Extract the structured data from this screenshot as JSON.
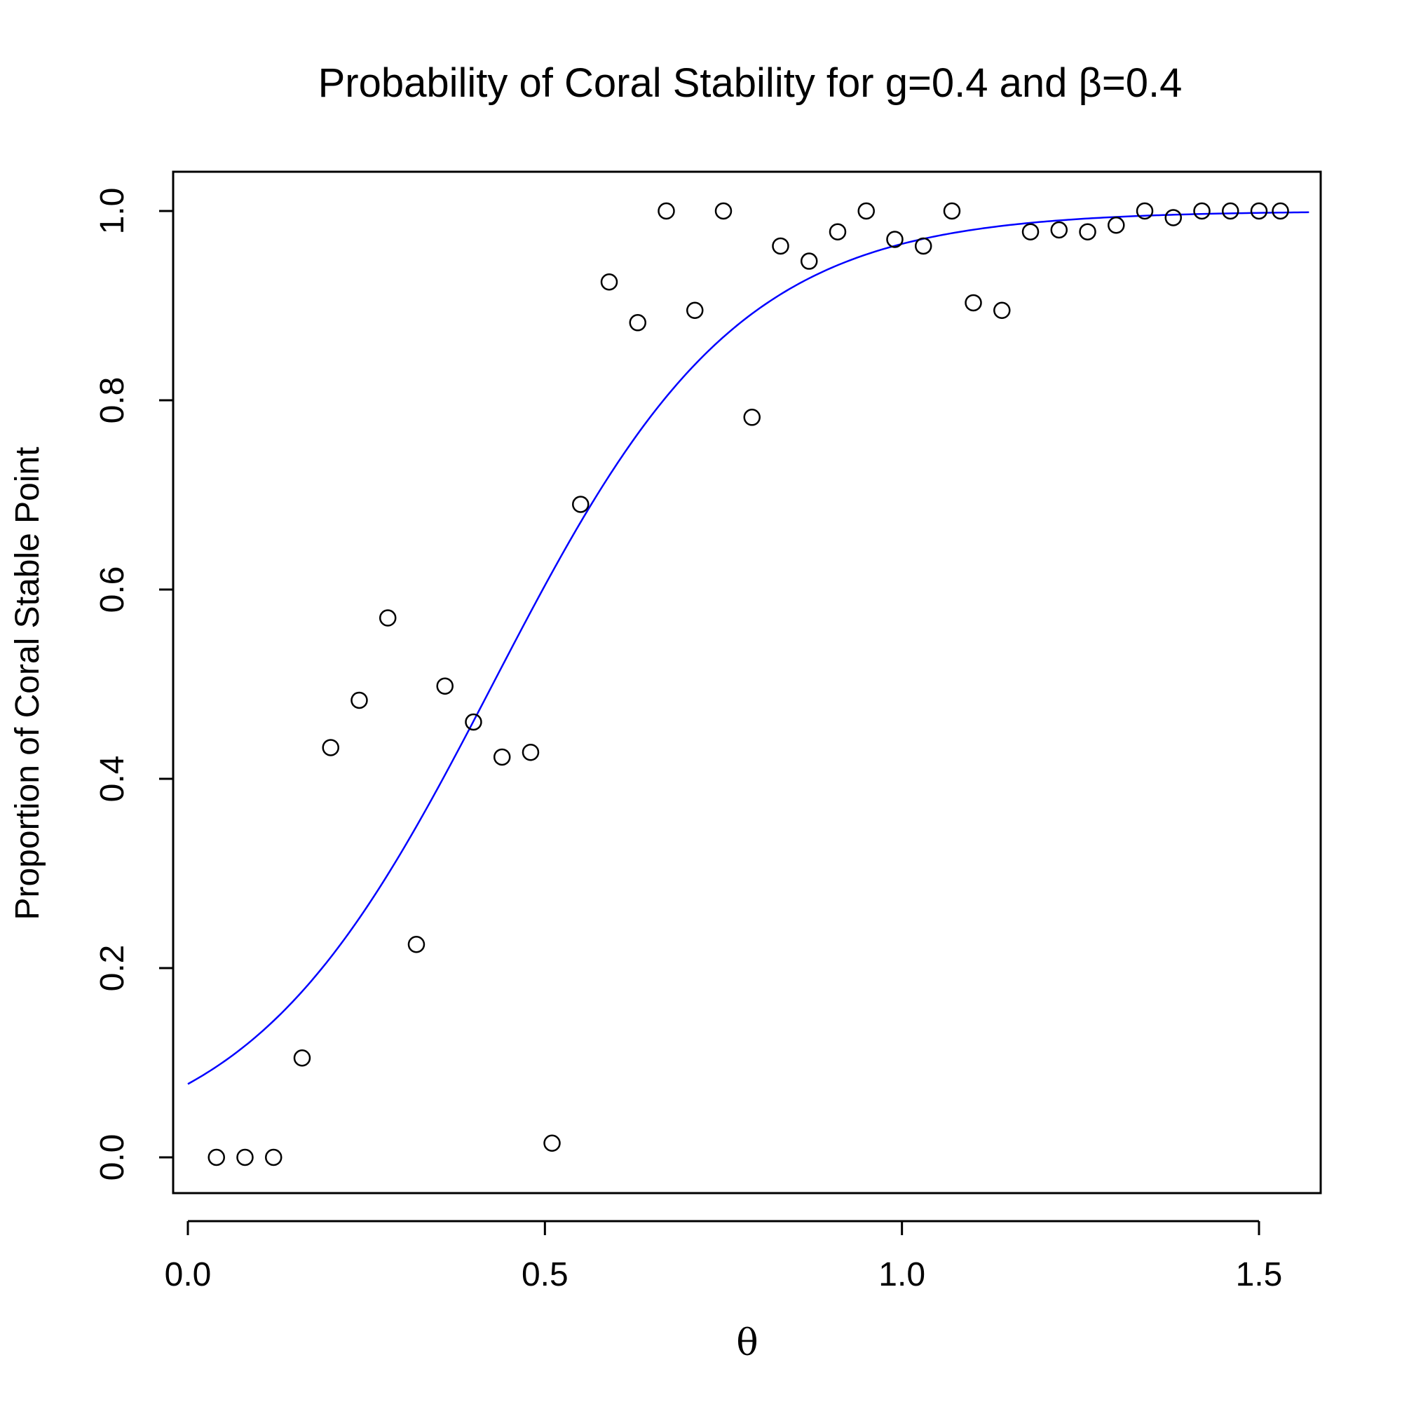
{
  "chart_data": {
    "type": "scatter",
    "title": "Probability of Coral Stability for g=0.4 and β=0.4",
    "xlabel": "θ",
    "ylabel": "Proportion of Coral Stable Point",
    "xlim": [
      0,
      1.58
    ],
    "ylim": [
      -0.04,
      1.04
    ],
    "x_ticks": [
      0.0,
      0.5,
      1.0,
      1.5
    ],
    "x_tick_labels": [
      "0.0",
      "0.5",
      "1.0",
      "1.5"
    ],
    "y_ticks": [
      0.0,
      0.2,
      0.4,
      0.6,
      0.8,
      1.0
    ],
    "y_tick_labels": [
      "0.0",
      "0.2",
      "0.4",
      "0.6",
      "0.8",
      "1.0"
    ],
    "grid": false,
    "colors": {
      "points": "#000000",
      "curve": "#0000ff",
      "axes": "#000000"
    },
    "points": {
      "x": [
        0.04,
        0.08,
        0.12,
        0.16,
        0.2,
        0.24,
        0.28,
        0.32,
        0.36,
        0.4,
        0.44,
        0.48,
        0.51,
        0.55,
        0.59,
        0.63,
        0.67,
        0.71,
        0.75,
        0.79,
        0.83,
        0.87,
        0.91,
        0.95,
        0.99,
        1.03,
        1.07,
        1.1,
        1.14,
        1.18,
        1.22,
        1.26,
        1.3,
        1.34,
        1.38,
        1.42,
        1.46,
        1.5,
        1.53
      ],
      "y": [
        0.0,
        0.0,
        0.0,
        0.105,
        0.433,
        0.483,
        0.57,
        0.225,
        0.498,
        0.46,
        0.423,
        0.428,
        0.015,
        0.69,
        0.925,
        0.882,
        1.0,
        0.895,
        1.0,
        0.782,
        0.963,
        0.947,
        0.978,
        1.0,
        0.97,
        0.963,
        1.0,
        0.903,
        0.895,
        0.978,
        0.98,
        0.978,
        0.985,
        1.0,
        0.993,
        1.0,
        1.0,
        1.0,
        1.0
      ]
    },
    "curve": {
      "type": "logistic",
      "x_range": [
        0.0,
        1.57
      ],
      "midpoint": 0.427,
      "slope": 5.8
    }
  }
}
